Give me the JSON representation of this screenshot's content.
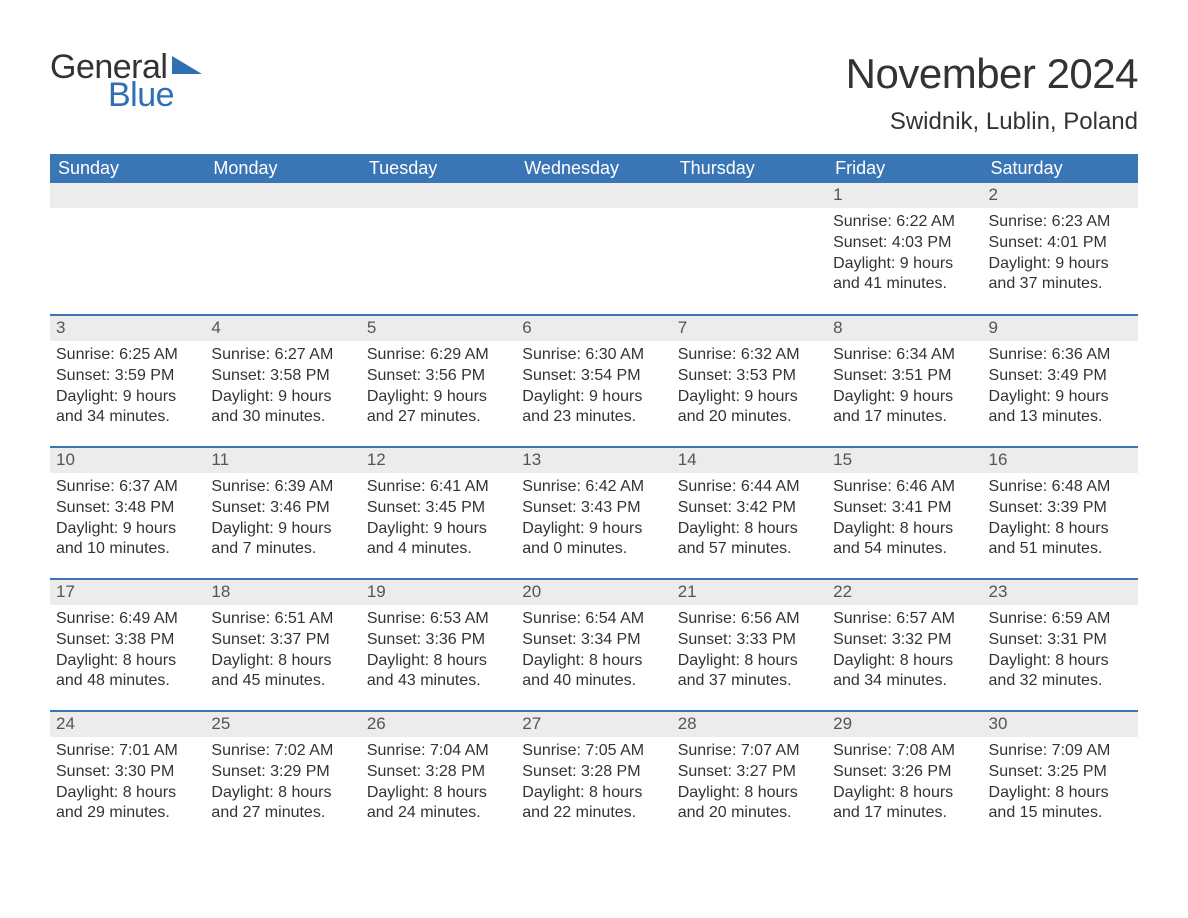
{
  "brand": {
    "word1": "General",
    "word2": "Blue",
    "text_color": "#333333",
    "accent_color": "#2f6fb4"
  },
  "title": "November 2024",
  "location": "Swidnik, Lublin, Poland",
  "colors": {
    "header_bg": "#3a76b6",
    "header_text": "#ffffff",
    "row_border": "#3a76b6",
    "daynum_bg": "#ececec",
    "body_text": "#333333",
    "page_bg": "#ffffff"
  },
  "fonts": {
    "title_size_pt": 42,
    "location_size_pt": 24,
    "header_size_pt": 18,
    "daynum_size_pt": 17,
    "body_size_pt": 16
  },
  "calendar": {
    "type": "table",
    "columns": [
      "Sunday",
      "Monday",
      "Tuesday",
      "Wednesday",
      "Thursday",
      "Friday",
      "Saturday"
    ],
    "weeks": [
      [
        null,
        null,
        null,
        null,
        null,
        {
          "n": "1",
          "sunrise": "Sunrise: 6:22 AM",
          "sunset": "Sunset: 4:03 PM",
          "dl1": "Daylight: 9 hours",
          "dl2": "and 41 minutes."
        },
        {
          "n": "2",
          "sunrise": "Sunrise: 6:23 AM",
          "sunset": "Sunset: 4:01 PM",
          "dl1": "Daylight: 9 hours",
          "dl2": "and 37 minutes."
        }
      ],
      [
        {
          "n": "3",
          "sunrise": "Sunrise: 6:25 AM",
          "sunset": "Sunset: 3:59 PM",
          "dl1": "Daylight: 9 hours",
          "dl2": "and 34 minutes."
        },
        {
          "n": "4",
          "sunrise": "Sunrise: 6:27 AM",
          "sunset": "Sunset: 3:58 PM",
          "dl1": "Daylight: 9 hours",
          "dl2": "and 30 minutes."
        },
        {
          "n": "5",
          "sunrise": "Sunrise: 6:29 AM",
          "sunset": "Sunset: 3:56 PM",
          "dl1": "Daylight: 9 hours",
          "dl2": "and 27 minutes."
        },
        {
          "n": "6",
          "sunrise": "Sunrise: 6:30 AM",
          "sunset": "Sunset: 3:54 PM",
          "dl1": "Daylight: 9 hours",
          "dl2": "and 23 minutes."
        },
        {
          "n": "7",
          "sunrise": "Sunrise: 6:32 AM",
          "sunset": "Sunset: 3:53 PM",
          "dl1": "Daylight: 9 hours",
          "dl2": "and 20 minutes."
        },
        {
          "n": "8",
          "sunrise": "Sunrise: 6:34 AM",
          "sunset": "Sunset: 3:51 PM",
          "dl1": "Daylight: 9 hours",
          "dl2": "and 17 minutes."
        },
        {
          "n": "9",
          "sunrise": "Sunrise: 6:36 AM",
          "sunset": "Sunset: 3:49 PM",
          "dl1": "Daylight: 9 hours",
          "dl2": "and 13 minutes."
        }
      ],
      [
        {
          "n": "10",
          "sunrise": "Sunrise: 6:37 AM",
          "sunset": "Sunset: 3:48 PM",
          "dl1": "Daylight: 9 hours",
          "dl2": "and 10 minutes."
        },
        {
          "n": "11",
          "sunrise": "Sunrise: 6:39 AM",
          "sunset": "Sunset: 3:46 PM",
          "dl1": "Daylight: 9 hours",
          "dl2": "and 7 minutes."
        },
        {
          "n": "12",
          "sunrise": "Sunrise: 6:41 AM",
          "sunset": "Sunset: 3:45 PM",
          "dl1": "Daylight: 9 hours",
          "dl2": "and 4 minutes."
        },
        {
          "n": "13",
          "sunrise": "Sunrise: 6:42 AM",
          "sunset": "Sunset: 3:43 PM",
          "dl1": "Daylight: 9 hours",
          "dl2": "and 0 minutes."
        },
        {
          "n": "14",
          "sunrise": "Sunrise: 6:44 AM",
          "sunset": "Sunset: 3:42 PM",
          "dl1": "Daylight: 8 hours",
          "dl2": "and 57 minutes."
        },
        {
          "n": "15",
          "sunrise": "Sunrise: 6:46 AM",
          "sunset": "Sunset: 3:41 PM",
          "dl1": "Daylight: 8 hours",
          "dl2": "and 54 minutes."
        },
        {
          "n": "16",
          "sunrise": "Sunrise: 6:48 AM",
          "sunset": "Sunset: 3:39 PM",
          "dl1": "Daylight: 8 hours",
          "dl2": "and 51 minutes."
        }
      ],
      [
        {
          "n": "17",
          "sunrise": "Sunrise: 6:49 AM",
          "sunset": "Sunset: 3:38 PM",
          "dl1": "Daylight: 8 hours",
          "dl2": "and 48 minutes."
        },
        {
          "n": "18",
          "sunrise": "Sunrise: 6:51 AM",
          "sunset": "Sunset: 3:37 PM",
          "dl1": "Daylight: 8 hours",
          "dl2": "and 45 minutes."
        },
        {
          "n": "19",
          "sunrise": "Sunrise: 6:53 AM",
          "sunset": "Sunset: 3:36 PM",
          "dl1": "Daylight: 8 hours",
          "dl2": "and 43 minutes."
        },
        {
          "n": "20",
          "sunrise": "Sunrise: 6:54 AM",
          "sunset": "Sunset: 3:34 PM",
          "dl1": "Daylight: 8 hours",
          "dl2": "and 40 minutes."
        },
        {
          "n": "21",
          "sunrise": "Sunrise: 6:56 AM",
          "sunset": "Sunset: 3:33 PM",
          "dl1": "Daylight: 8 hours",
          "dl2": "and 37 minutes."
        },
        {
          "n": "22",
          "sunrise": "Sunrise: 6:57 AM",
          "sunset": "Sunset: 3:32 PM",
          "dl1": "Daylight: 8 hours",
          "dl2": "and 34 minutes."
        },
        {
          "n": "23",
          "sunrise": "Sunrise: 6:59 AM",
          "sunset": "Sunset: 3:31 PM",
          "dl1": "Daylight: 8 hours",
          "dl2": "and 32 minutes."
        }
      ],
      [
        {
          "n": "24",
          "sunrise": "Sunrise: 7:01 AM",
          "sunset": "Sunset: 3:30 PM",
          "dl1": "Daylight: 8 hours",
          "dl2": "and 29 minutes."
        },
        {
          "n": "25",
          "sunrise": "Sunrise: 7:02 AM",
          "sunset": "Sunset: 3:29 PM",
          "dl1": "Daylight: 8 hours",
          "dl2": "and 27 minutes."
        },
        {
          "n": "26",
          "sunrise": "Sunrise: 7:04 AM",
          "sunset": "Sunset: 3:28 PM",
          "dl1": "Daylight: 8 hours",
          "dl2": "and 24 minutes."
        },
        {
          "n": "27",
          "sunrise": "Sunrise: 7:05 AM",
          "sunset": "Sunset: 3:28 PM",
          "dl1": "Daylight: 8 hours",
          "dl2": "and 22 minutes."
        },
        {
          "n": "28",
          "sunrise": "Sunrise: 7:07 AM",
          "sunset": "Sunset: 3:27 PM",
          "dl1": "Daylight: 8 hours",
          "dl2": "and 20 minutes."
        },
        {
          "n": "29",
          "sunrise": "Sunrise: 7:08 AM",
          "sunset": "Sunset: 3:26 PM",
          "dl1": "Daylight: 8 hours",
          "dl2": "and 17 minutes."
        },
        {
          "n": "30",
          "sunrise": "Sunrise: 7:09 AM",
          "sunset": "Sunset: 3:25 PM",
          "dl1": "Daylight: 8 hours",
          "dl2": "and 15 minutes."
        }
      ]
    ]
  }
}
